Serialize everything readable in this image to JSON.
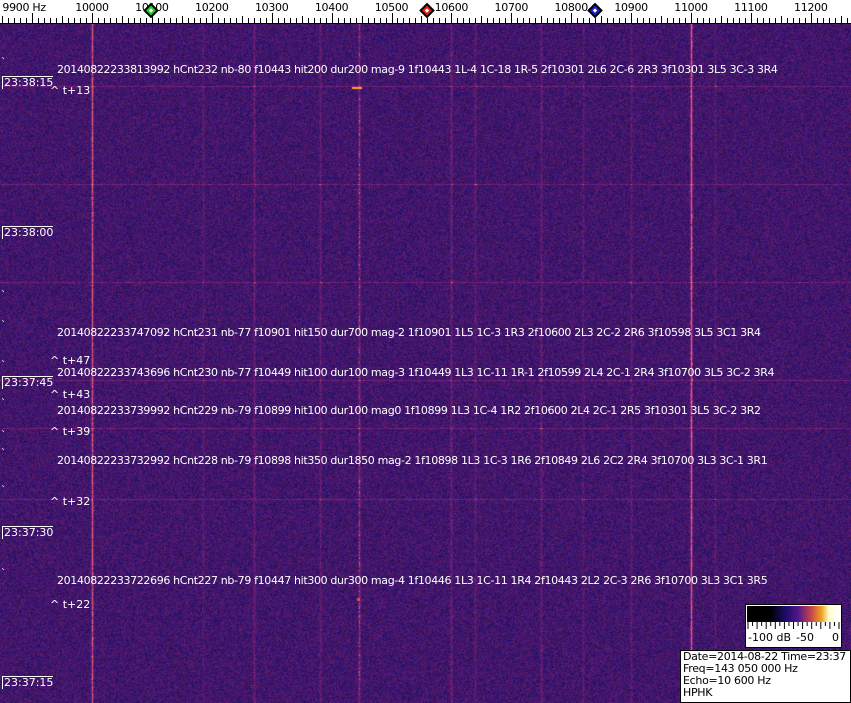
{
  "axis": {
    "unit_label": "9900 Hz",
    "ticks": [
      {
        "freq": 9900,
        "label": "9900 Hz"
      },
      {
        "freq": 10000,
        "label": "10000"
      },
      {
        "freq": 10100,
        "label": "10100"
      },
      {
        "freq": 10200,
        "label": "10200"
      },
      {
        "freq": 10300,
        "label": "10300"
      },
      {
        "freq": 10400,
        "label": "10400"
      },
      {
        "freq": 10500,
        "label": "10500"
      },
      {
        "freq": 10600,
        "label": "10600"
      },
      {
        "freq": 10700,
        "label": "10700"
      },
      {
        "freq": 10800,
        "label": "10800"
      },
      {
        "freq": 10900,
        "label": "10900"
      },
      {
        "freq": 11000,
        "label": "11000"
      },
      {
        "freq": 11100,
        "label": "11100"
      },
      {
        "freq": 11200,
        "label": "11200"
      }
    ]
  },
  "markers": [
    {
      "name": "green",
      "freq": 10098,
      "color": "#22cc22"
    },
    {
      "name": "red",
      "freq": 10560,
      "color": "#dd2222"
    },
    {
      "name": "blue",
      "freq": 10840,
      "color": "#1a22cc"
    }
  ],
  "time_labels": [
    "23:38:15",
    "23:38:00",
    "23:37:45",
    "23:37:30",
    "23:37:15"
  ],
  "detections": [
    {
      "text": "20140822233813992 hCnt232 nb-80 f10443 hit200 dur200 mag-9 1f10443 1L-4 1C-18 1R-5 2f10301 2L6 2C-6 2R3 3f10301 3L5 3C-3 3R4",
      "offset": "^ t+13"
    },
    {
      "text": "20140822233747092 hCnt231 nb-77 f10901 hit150 dur700 mag-2 1f10901 1L5 1C-3 1R3 2f10600 2L3 2C-2 2R6 3f10598 3L5 3C1 3R4",
      "offset": "^ t+47"
    },
    {
      "text": "20140822233743696 hCnt230 nb-77 f10449 hit100 dur100 mag-3 1f10449 1L3 1C-11 1R-1 2f10599 2L4 2C-1 2R4 3f10700 3L5 3C-2 3R4",
      "offset": "^ t+43"
    },
    {
      "text": "20140822233739992 hCnt229 nb-79 f10899 hit100 dur100 mag0 1f10899 1L3 1C-4 1R2 2f10600 2L4 2C-1 2R5 3f10301 3L5 3C-2 3R2",
      "offset": "^ t+39"
    },
    {
      "text": "20140822233732992 hCnt228 nb-79 f10898 hit350 dur1850 mag-2 1f10898 1L3 1C-3 1R6 2f10849 2L6 2C2 2R4 3f10700 3L3 3C-1 3R1",
      "offset": "^ t+32"
    },
    {
      "text": "20140822233722696 hCnt227 nb-79 f10447 hit300 dur300 mag-4 1f10446 1L3 1C-11 1R4 2f10443 2L2 2C-3 2R6 3f10700 3L3 3C1 3R5",
      "offset": "^ t+22"
    }
  ],
  "colorbar": {
    "labels": [
      "-100 dB",
      "-50",
      "0"
    ]
  },
  "info": {
    "line1": "Date=2014-08-22 Time=23:37 UTC",
    "line2": "Freq=143 050 000 Hz",
    "line3": "Echo=10 600 Hz",
    "line4": "HPHK"
  },
  "colors": {
    "background": "#2a1c8c",
    "carrier": "#c04070"
  }
}
